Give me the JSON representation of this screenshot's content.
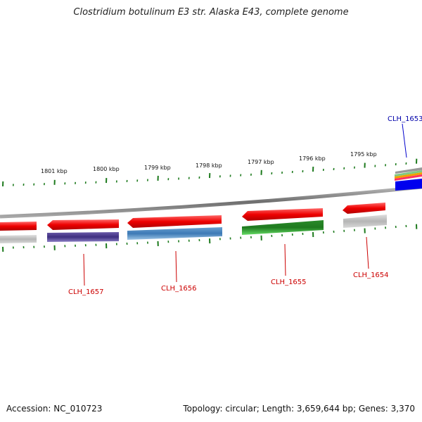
{
  "title": "Clostridium botulinum E3 str. Alaska E43, complete genome",
  "footer": {
    "accession": "Accession: NC_010723",
    "summary": "Topology: circular; Length: 3,659,644 bp; Genes: 3,370"
  },
  "colors": {
    "tick": "#1d7a1d",
    "backbone": "#8a8a8a",
    "label_red": "#cc0000",
    "label_blue": "#0000aa"
  },
  "scale_labels": [
    "1801 kbp",
    "1800 kbp",
    "1799 kbp",
    "1798 kbp",
    "1797 kbp",
    "1796 kbp",
    "1795 kbp"
  ],
  "genes": [
    {
      "label": "CLH_1657",
      "color": "#cc0000"
    },
    {
      "label": "CLH_1656",
      "color": "#cc0000"
    },
    {
      "label": "CLH_1655",
      "color": "#cc0000"
    },
    {
      "label": "CLH_1654",
      "color": "#cc0000"
    },
    {
      "label": "CLH_1653",
      "color": "#0000aa"
    }
  ]
}
